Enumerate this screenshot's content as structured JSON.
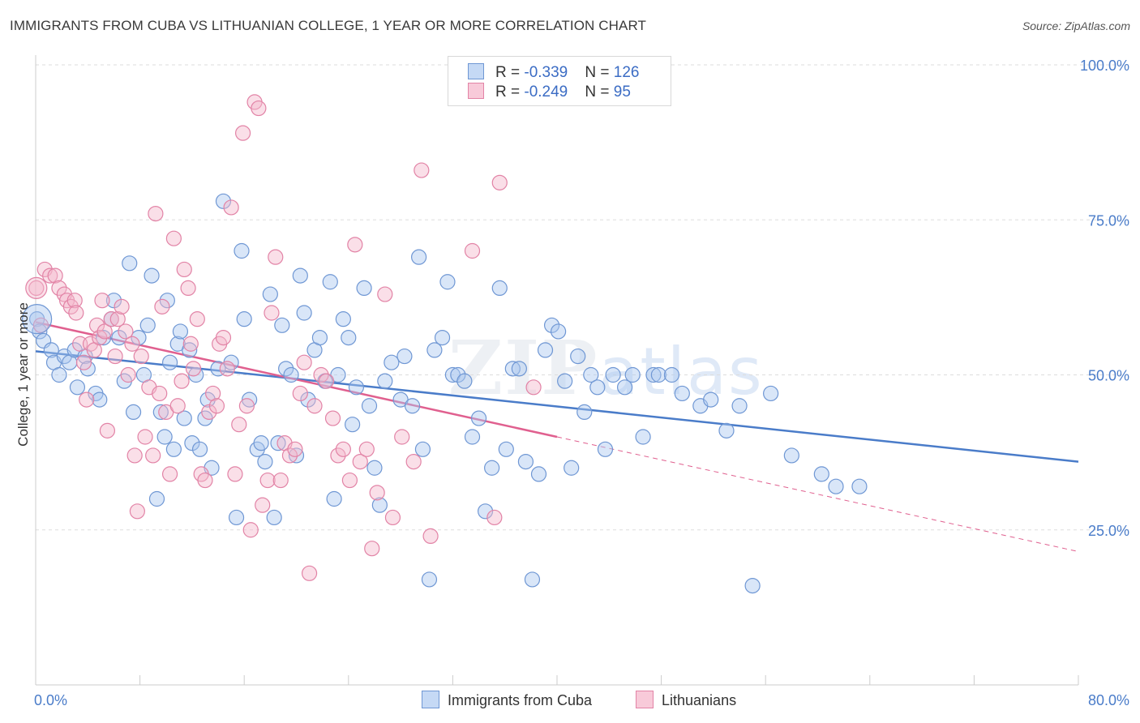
{
  "title": "IMMIGRANTS FROM CUBA VS LITHUANIAN COLLEGE, 1 YEAR OR MORE CORRELATION CHART",
  "source": "Source: ZipAtlas.com",
  "watermark": {
    "zip": "ZIP",
    "atlas": "atlas"
  },
  "colors": {
    "blue": "#4a7cc9",
    "blue_fill": "#aac8f0",
    "pink": "#e0608f",
    "pink_fill": "#f5b8cc",
    "grid": "#dddddd"
  },
  "legend": {
    "rows": [
      {
        "r_label": "R = ",
        "r_value": "-0.339",
        "n_label": "N = ",
        "n_value": "126"
      },
      {
        "r_label": "R = ",
        "r_value": "-0.249",
        "n_label": "N = ",
        "n_value": "95"
      }
    ]
  },
  "chart_data": {
    "type": "scatter",
    "title": "IMMIGRANTS FROM CUBA VS LITHUANIAN COLLEGE, 1 YEAR OR MORE CORRELATION CHART",
    "xlabel": "",
    "ylabel": "College, 1 year or more",
    "xlim": [
      0,
      80
    ],
    "ylim": [
      0,
      100
    ],
    "x_tick_labels": [
      "0.0%",
      "80.0%"
    ],
    "y_ticks": [
      25,
      50,
      75,
      100
    ],
    "y_tick_labels": [
      "25.0%",
      "50.0%",
      "75.0%",
      "100.0%"
    ],
    "grid": "horizontal dashed",
    "legend_position": "top-center",
    "series": [
      {
        "name": "Immigrants from Cuba",
        "color": "#4a7cc9",
        "r": -0.339,
        "n": 126,
        "trend": {
          "x": [
            0,
            80
          ],
          "y": [
            53.8,
            36.0
          ]
        },
        "points": [
          [
            0.1,
            59
          ],
          [
            0.3,
            57
          ],
          [
            0.6,
            55.5
          ],
          [
            1.2,
            54
          ],
          [
            1.4,
            52
          ],
          [
            1.8,
            50
          ],
          [
            2.2,
            53
          ],
          [
            2.6,
            52
          ],
          [
            3,
            54
          ],
          [
            3.2,
            48
          ],
          [
            3.8,
            53
          ],
          [
            4,
            51
          ],
          [
            4.6,
            47
          ],
          [
            4.9,
            46
          ],
          [
            5.2,
            56
          ],
          [
            5.8,
            59
          ],
          [
            6,
            62
          ],
          [
            6.4,
            56
          ],
          [
            6.8,
            49
          ],
          [
            7.2,
            68
          ],
          [
            7.5,
            44
          ],
          [
            7.9,
            56
          ],
          [
            8.3,
            50
          ],
          [
            8.6,
            58
          ],
          [
            8.9,
            66
          ],
          [
            9.3,
            30
          ],
          [
            9.6,
            44
          ],
          [
            9.9,
            40
          ],
          [
            10.1,
            62
          ],
          [
            10.3,
            52
          ],
          [
            10.6,
            38
          ],
          [
            10.9,
            55
          ],
          [
            11.1,
            57
          ],
          [
            11.4,
            43
          ],
          [
            11.8,
            54
          ],
          [
            12,
            39
          ],
          [
            12.3,
            50
          ],
          [
            12.6,
            38
          ],
          [
            13,
            43
          ],
          [
            13.2,
            46
          ],
          [
            13.5,
            35
          ],
          [
            14,
            51
          ],
          [
            14.4,
            78
          ],
          [
            15,
            52
          ],
          [
            15.4,
            27
          ],
          [
            15.8,
            70
          ],
          [
            16,
            59
          ],
          [
            16.4,
            46
          ],
          [
            17,
            38
          ],
          [
            17.3,
            39
          ],
          [
            17.6,
            36
          ],
          [
            18,
            63
          ],
          [
            18.3,
            27
          ],
          [
            18.6,
            39
          ],
          [
            18.9,
            58
          ],
          [
            19.2,
            51
          ],
          [
            19.6,
            50
          ],
          [
            20,
            37
          ],
          [
            20.3,
            66
          ],
          [
            20.6,
            60
          ],
          [
            20.9,
            46
          ],
          [
            21.4,
            54
          ],
          [
            21.8,
            56
          ],
          [
            22.2,
            49
          ],
          [
            22.6,
            65
          ],
          [
            22.9,
            30
          ],
          [
            23.2,
            50
          ],
          [
            23.6,
            59
          ],
          [
            24,
            56
          ],
          [
            24.3,
            42
          ],
          [
            24.6,
            48
          ],
          [
            25.2,
            64
          ],
          [
            25.6,
            45
          ],
          [
            26,
            35
          ],
          [
            26.4,
            29
          ],
          [
            26.8,
            49
          ],
          [
            27.3,
            52
          ],
          [
            28,
            46
          ],
          [
            28.3,
            53
          ],
          [
            28.9,
            45
          ],
          [
            29.4,
            69
          ],
          [
            29.7,
            38
          ],
          [
            30.2,
            17
          ],
          [
            30.6,
            54
          ],
          [
            31.2,
            56
          ],
          [
            31.6,
            65
          ],
          [
            32,
            50
          ],
          [
            32.4,
            50
          ],
          [
            32.9,
            49
          ],
          [
            33.5,
            40
          ],
          [
            34,
            43
          ],
          [
            34.5,
            28
          ],
          [
            35,
            35
          ],
          [
            35.6,
            64
          ],
          [
            36.1,
            38
          ],
          [
            36.6,
            51
          ],
          [
            37.1,
            51
          ],
          [
            37.6,
            36
          ],
          [
            38.1,
            17
          ],
          [
            38.6,
            34
          ],
          [
            39.1,
            54
          ],
          [
            39.6,
            58
          ],
          [
            40.1,
            57
          ],
          [
            40.6,
            49
          ],
          [
            41.1,
            35
          ],
          [
            41.6,
            53
          ],
          [
            42.1,
            44
          ],
          [
            42.6,
            50
          ],
          [
            43.1,
            48
          ],
          [
            43.7,
            38
          ],
          [
            44.3,
            50
          ],
          [
            45.2,
            48
          ],
          [
            45.8,
            50
          ],
          [
            46.6,
            40
          ],
          [
            47.4,
            50
          ],
          [
            47.8,
            50
          ],
          [
            48.8,
            50
          ],
          [
            49.6,
            47
          ],
          [
            51,
            45
          ],
          [
            51.8,
            46
          ],
          [
            53,
            41
          ],
          [
            54,
            45
          ],
          [
            55,
            16
          ],
          [
            56.4,
            47
          ],
          [
            58,
            37
          ],
          [
            60.3,
            34
          ],
          [
            61.4,
            32
          ],
          [
            63.2,
            32
          ]
        ]
      },
      {
        "name": "Lithuanians",
        "color": "#e0608f",
        "r": -0.249,
        "n": 95,
        "trend": {
          "x": [
            0,
            40
          ],
          "y": [
            58.5,
            40.0
          ]
        },
        "trend_dashed": {
          "x": [
            40,
            80
          ],
          "y": [
            40.0,
            21.5
          ]
        },
        "points": [
          [
            0.05,
            64
          ],
          [
            0.4,
            58
          ],
          [
            0.7,
            67
          ],
          [
            1.1,
            66
          ],
          [
            1.5,
            66
          ],
          [
            1.8,
            64
          ],
          [
            2.2,
            63
          ],
          [
            2.4,
            62
          ],
          [
            2.7,
            61
          ],
          [
            3,
            62
          ],
          [
            3.1,
            60
          ],
          [
            3.4,
            55
          ],
          [
            3.7,
            52
          ],
          [
            3.9,
            46
          ],
          [
            4.2,
            55
          ],
          [
            4.5,
            54
          ],
          [
            4.7,
            58
          ],
          [
            4.9,
            56
          ],
          [
            5.1,
            62
          ],
          [
            5.3,
            57
          ],
          [
            5.5,
            41
          ],
          [
            5.8,
            59
          ],
          [
            6.1,
            53
          ],
          [
            6.3,
            59
          ],
          [
            6.6,
            61
          ],
          [
            6.9,
            57
          ],
          [
            7.1,
            50
          ],
          [
            7.4,
            55
          ],
          [
            7.6,
            37
          ],
          [
            7.8,
            28
          ],
          [
            8.1,
            53
          ],
          [
            8.4,
            40
          ],
          [
            8.7,
            48
          ],
          [
            9,
            37
          ],
          [
            9.2,
            76
          ],
          [
            9.5,
            47
          ],
          [
            9.7,
            61
          ],
          [
            10,
            44
          ],
          [
            10.3,
            34
          ],
          [
            10.6,
            72
          ],
          [
            10.9,
            45
          ],
          [
            11.2,
            49
          ],
          [
            11.4,
            67
          ],
          [
            11.7,
            64
          ],
          [
            11.9,
            55
          ],
          [
            12.1,
            51
          ],
          [
            12.4,
            59
          ],
          [
            12.7,
            34
          ],
          [
            13,
            33
          ],
          [
            13.3,
            44
          ],
          [
            13.6,
            47
          ],
          [
            13.9,
            45
          ],
          [
            14.1,
            55
          ],
          [
            14.4,
            56
          ],
          [
            14.7,
            51
          ],
          [
            15,
            77
          ],
          [
            15.3,
            34
          ],
          [
            15.6,
            42
          ],
          [
            15.9,
            89
          ],
          [
            16.2,
            45
          ],
          [
            16.5,
            25
          ],
          [
            16.8,
            94
          ],
          [
            17.1,
            93
          ],
          [
            17.4,
            29
          ],
          [
            17.8,
            33
          ],
          [
            18.1,
            60
          ],
          [
            18.4,
            69
          ],
          [
            18.8,
            33
          ],
          [
            19.1,
            39
          ],
          [
            19.5,
            37
          ],
          [
            19.9,
            38
          ],
          [
            20.3,
            47
          ],
          [
            20.6,
            52
          ],
          [
            21,
            18
          ],
          [
            21.4,
            45
          ],
          [
            21.9,
            50
          ],
          [
            22.3,
            49
          ],
          [
            22.8,
            43
          ],
          [
            23.2,
            37
          ],
          [
            23.6,
            38
          ],
          [
            24.1,
            33
          ],
          [
            24.5,
            71
          ],
          [
            24.9,
            36
          ],
          [
            25.4,
            38
          ],
          [
            25.8,
            22
          ],
          [
            26.2,
            31
          ],
          [
            26.8,
            63
          ],
          [
            27.4,
            27
          ],
          [
            28.1,
            40
          ],
          [
            29,
            36
          ],
          [
            29.6,
            83
          ],
          [
            30.3,
            24
          ],
          [
            33.5,
            70
          ],
          [
            35.2,
            27
          ],
          [
            35.6,
            81
          ],
          [
            38.2,
            48
          ]
        ]
      }
    ]
  },
  "bottom_legend": [
    {
      "label": "Immigrants from Cuba"
    },
    {
      "label": "Lithuanians"
    }
  ]
}
